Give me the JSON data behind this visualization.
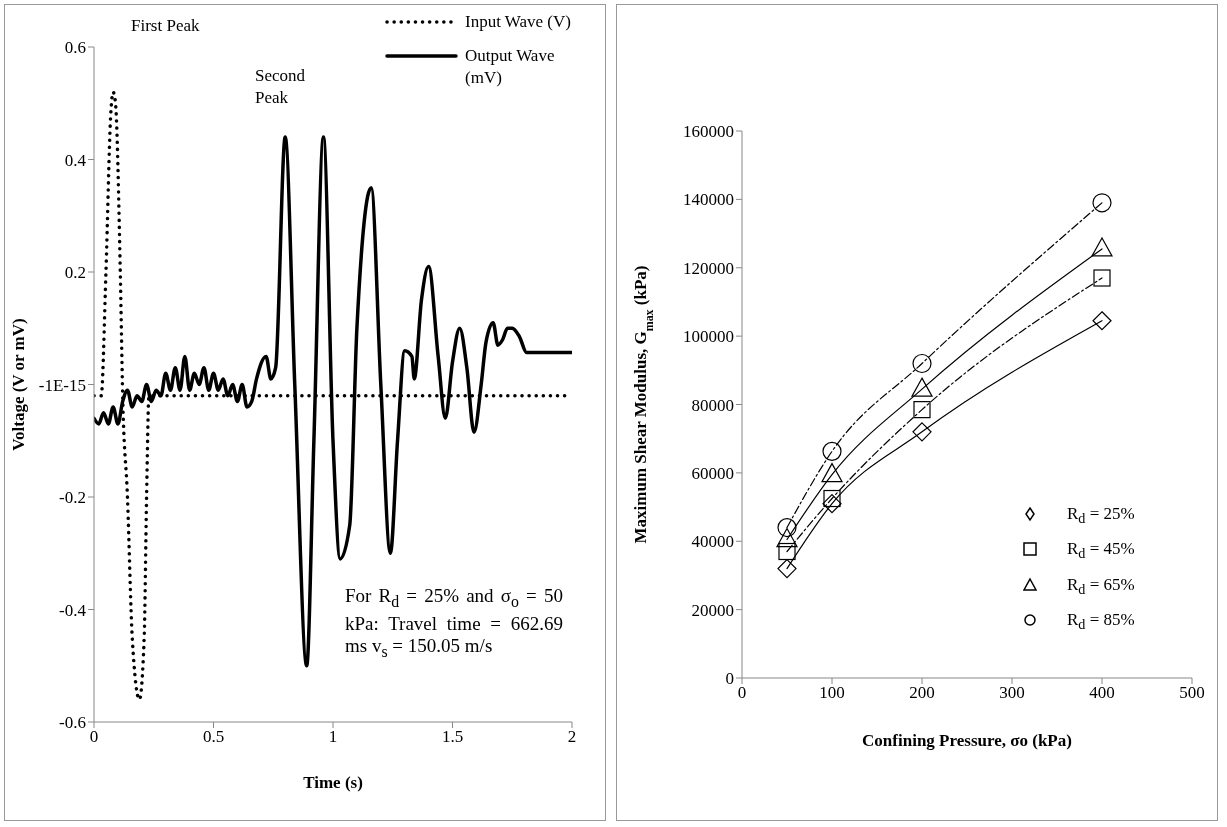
{
  "chart_data": [
    {
      "type": "line",
      "xlabel": "Time (s)",
      "ylabel": "Voltage (V or mV)",
      "xlim": [
        0,
        2
      ],
      "xticks": [
        0,
        0.5,
        1,
        1.5,
        2
      ],
      "ylim": [
        -0.6,
        0.6
      ],
      "yticks": [
        -0.6,
        -0.4,
        -0.2,
        {
          "value": 0,
          "label": "-1E-15"
        },
        0.2,
        0.4,
        0.6
      ],
      "grid": false,
      "legend": "top right",
      "annotations": [
        "First Peak",
        "Second Peak",
        "For R$_{d}$ = 25% and σ$_{o}$ = 50 kPa: Travel time = 662.69 ms v$_{s}$ = 150.05 m/s"
      ],
      "series": [
        {
          "name": "Input Wave (V)",
          "color": "#000000",
          "line_style": "dotted",
          "marker": "none",
          "x": [
            0,
            0.03,
            0.05,
            0.07,
            0.08,
            0.09,
            0.11,
            0.12,
            0.14,
            0.16,
            0.19,
            0.21,
            0.22,
            0.23,
            1.97
          ],
          "values": [
            -0.02,
            -0.02,
            0.2,
            0.48,
            0.52,
            0.5,
            0.2,
            -0.02,
            -0.2,
            -0.45,
            -0.56,
            -0.45,
            -0.2,
            -0.02,
            -0.02
          ]
        },
        {
          "name": "Output Wave (mV)",
          "color": "#000000",
          "line_style": "solid",
          "marker": "none",
          "x": [
            0,
            0.02,
            0.04,
            0.06,
            0.08,
            0.1,
            0.12,
            0.14,
            0.16,
            0.18,
            0.2,
            0.22,
            0.24,
            0.26,
            0.28,
            0.3,
            0.32,
            0.34,
            0.36,
            0.38,
            0.4,
            0.42,
            0.44,
            0.46,
            0.48,
            0.5,
            0.52,
            0.54,
            0.56,
            0.58,
            0.6,
            0.62,
            0.64,
            0.66,
            0.68,
            0.72,
            0.74,
            0.76,
            0.8,
            0.84,
            0.89,
            0.92,
            0.96,
            1.0,
            1.03,
            1.07,
            1.1,
            1.16,
            1.2,
            1.24,
            1.27,
            1.3,
            1.33,
            1.34,
            1.37,
            1.4,
            1.44,
            1.47,
            1.5,
            1.53,
            1.56,
            1.59,
            1.62,
            1.64,
            1.67,
            1.69,
            1.71,
            1.73,
            1.75,
            1.78,
            1.81,
            2.0
          ],
          "values": [
            -0.06,
            -0.07,
            -0.05,
            -0.07,
            -0.04,
            -0.07,
            -0.03,
            -0.01,
            -0.04,
            -0.02,
            -0.03,
            0.0,
            -0.03,
            -0.01,
            -0.02,
            0.02,
            -0.01,
            0.03,
            -0.01,
            0.05,
            -0.01,
            0.02,
            0.0,
            0.03,
            -0.01,
            0.02,
            -0.01,
            0.01,
            -0.02,
            0.0,
            -0.03,
            0.0,
            -0.04,
            -0.03,
            0.01,
            0.05,
            0.01,
            0.03,
            0.44,
            0.0,
            -0.5,
            -0.1,
            0.44,
            -0.1,
            -0.31,
            -0.25,
            0.1,
            0.35,
            0.0,
            -0.3,
            -0.1,
            0.06,
            0.05,
            0.01,
            0.15,
            0.21,
            0.05,
            -0.06,
            0.04,
            0.1,
            0.03,
            -0.085,
            0.0,
            0.075,
            0.11,
            0.07,
            0.08,
            0.1,
            0.1,
            0.085,
            0.057,
            0.057
          ]
        }
      ]
    },
    {
      "type": "line",
      "xlabel": "Confining Pressure, σo (kPa)",
      "ylabel": "Maximum Shear Modulus, G$_{max}$ (kPa)",
      "x": [
        50,
        100,
        200,
        400
      ],
      "xlim": [
        0,
        500
      ],
      "xticks": [
        0,
        100,
        200,
        300,
        400,
        500
      ],
      "ylim": [
        0,
        160000
      ],
      "yticks": [
        0,
        20000,
        40000,
        60000,
        80000,
        100000,
        120000,
        140000,
        160000
      ],
      "grid": false,
      "legend": "bottom right",
      "series": [
        {
          "name": "R$_{d}$ = 25%",
          "color": "#000000",
          "marker": "diamond",
          "line_style": "solid",
          "values": [
            32000,
            51000,
            72000,
            104500
          ]
        },
        {
          "name": "R$_{d}$ = 45%",
          "color": "#000000",
          "marker": "square",
          "line_style": "dashed",
          "values": [
            37000,
            52500,
            78500,
            117000
          ]
        },
        {
          "name": "R$_{d}$ = 65%",
          "color": "#000000",
          "marker": "triangle",
          "line_style": "solid",
          "values": [
            40500,
            59500,
            84500,
            125500
          ]
        },
        {
          "name": "R$_{d}$ = 85%",
          "color": "#000000",
          "marker": "circle",
          "line_style": "dashed",
          "values": [
            44000,
            66300,
            92000,
            139000
          ]
        }
      ]
    }
  ]
}
